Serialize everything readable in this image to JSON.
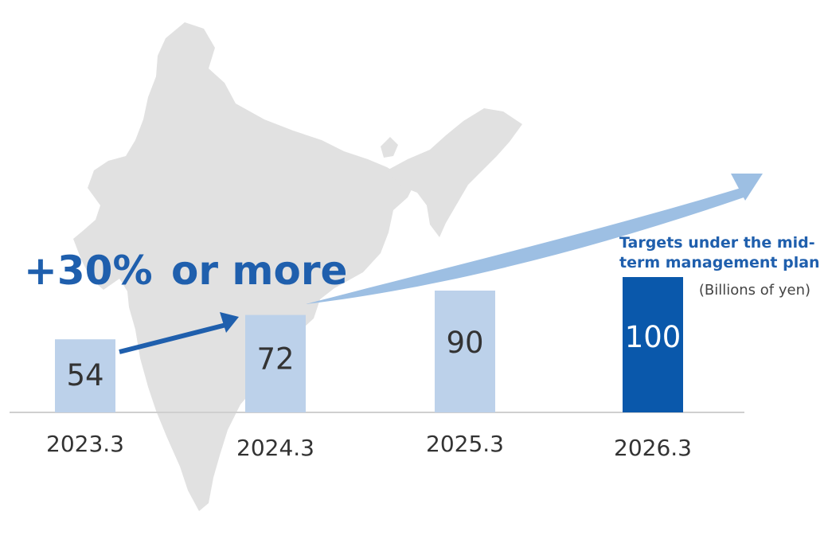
{
  "chart_data": {
    "type": "bar",
    "categories": [
      "2023.3",
      "2024.3",
      "2025.3",
      "2026.3"
    ],
    "values": [
      54,
      72,
      90,
      100
    ],
    "value_labels": [
      "54",
      "72",
      "90",
      "100"
    ],
    "highlight_index": 3,
    "ylim": [
      0,
      100
    ],
    "grid": false,
    "legend": "none",
    "annotations": {
      "growth": {
        "plus": "+30%",
        "rest": "or more"
      },
      "target_line1": "Targets under the mid-",
      "target_line2": "term management plan",
      "unit": "(Billions of yen)"
    }
  },
  "colors": {
    "bar": "#bcd1ea",
    "bar_highlight": "#0a58ab",
    "accent": "#1f5fad",
    "big_arrow": "#9dbfe3",
    "map": "#e1e1e1",
    "axis": "#cfcfcf",
    "value_text": "#333333",
    "value_text_highlight": "#ffffff"
  },
  "icons": {
    "background": "india-map-icon",
    "small_arrow": "arrow-up-right-icon",
    "big_arrow": "growth-arrow-icon"
  }
}
